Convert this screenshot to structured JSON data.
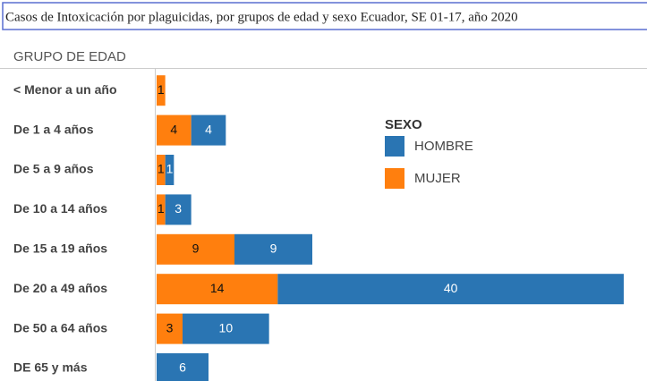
{
  "chart_data": {
    "type": "stacked_barh",
    "title": "Casos de Intoxicación por plaguicidas, por grupos de edad y sexo Ecuador, SE 01-17, año 2020",
    "y_axis_label": "GRUPO DE EDAD",
    "legend_title": "SEXO",
    "categories": [
      "< Menor a un año",
      "De 1 a 4 años",
      "De 5 a 9 años",
      "De 10 a 14 años",
      "De 15 a 19 años",
      "De 20 a 49 años",
      "De 50 a 64 años",
      "DE 65 y más"
    ],
    "series": [
      {
        "name": "MUJER",
        "color": "#ff7f0e",
        "values": [
          1,
          4,
          1,
          1,
          9,
          14,
          3,
          null
        ]
      },
      {
        "name": "HOMBRE",
        "color": "#2a75b3",
        "values": [
          null,
          4,
          1,
          3,
          9,
          40,
          10,
          6
        ]
      }
    ],
    "legend_order": [
      "HOMBRE",
      "MUJER"
    ]
  }
}
